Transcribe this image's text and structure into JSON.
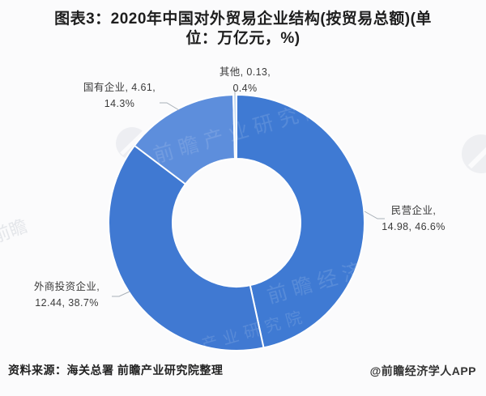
{
  "title": {
    "full": "图表3：2020年中国对外贸易企业结构(按贸易总额)(单位：万亿元，%)",
    "lines": [
      "图表3：2020年中国对外贸易企业结构(按贸易总额)(单",
      "位：万亿元，%)"
    ]
  },
  "footer": {
    "source": "资料来源：海关总署 前瞻产业研究院整理",
    "credit": "@前瞻经济学人APP"
  },
  "watermarks": {
    "wm1": "前瞻产业研究院",
    "wm2": "前瞻经济学人",
    "wm3": "前瞻产业研究院"
  },
  "colors": {
    "background": "#FBFBFC",
    "title_text": "#1E1E1E",
    "label_text": "#3A3A3A",
    "separator": "#FFFFFF",
    "leader_line": "#A8B0B8"
  },
  "chart_data": {
    "type": "pie",
    "subtype": "donut",
    "title": "2020年中国对外贸易企业结构(按贸易总额)",
    "unit": "万亿元，%",
    "direction": "clockwise",
    "start_angle_deg": 0,
    "inner_radius_ratio": 0.5,
    "legend": "none",
    "series": [
      {
        "name": "民营企业",
        "value": 14.98,
        "percent": 46.6,
        "color": "#3F7AD3",
        "label_line1": "民营企业,",
        "label_line2": "14.98, 46.6%"
      },
      {
        "name": "外商投资企业",
        "value": 12.44,
        "percent": 38.7,
        "color": "#4079D2",
        "label_line1": "外商投资企业,",
        "label_line2": "12.44, 38.7%"
      },
      {
        "name": "国有企业",
        "value": 4.61,
        "percent": 14.3,
        "color": "#5D8EDC",
        "label_line1": "国有企业, 4.61,",
        "label_line2": "14.3%"
      },
      {
        "name": "其他",
        "value": 0.13,
        "percent": 0.4,
        "color": "#C3D8F0",
        "label_line1": "其他, 0.13,",
        "label_line2": "0.4%"
      }
    ]
  }
}
